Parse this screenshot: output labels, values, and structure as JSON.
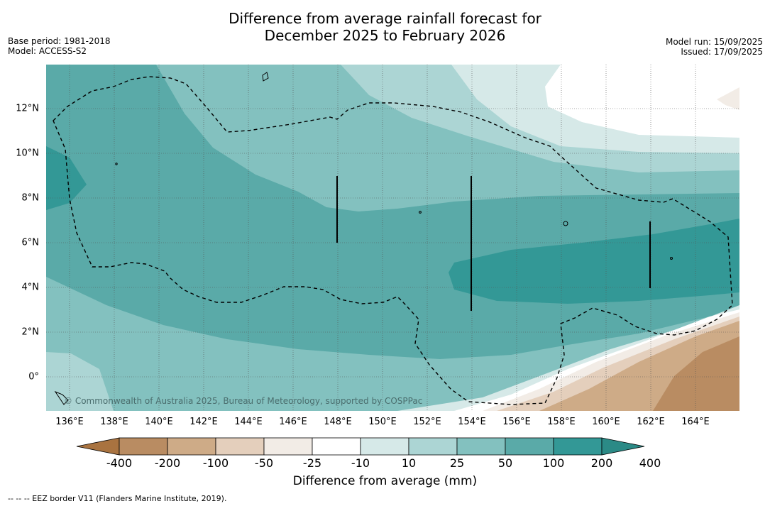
{
  "title_lines": [
    "Difference from average rainfall forecast for",
    "December 2025 to February 2026"
  ],
  "meta_left": [
    "Base period: 1981-2018",
    "Model: ACCESS-S2"
  ],
  "meta_right": [
    "Model run: 15/09/2025",
    "Issued: 17/09/2025"
  ],
  "lon_ticks": [
    "136°E",
    "138°E",
    "140°E",
    "142°E",
    "144°E",
    "146°E",
    "148°E",
    "150°E",
    "152°E",
    "154°E",
    "156°E",
    "158°E",
    "160°E",
    "162°E",
    "164°E"
  ],
  "lat_ticks": [
    "12°N",
    "10°N",
    "8°N",
    "6°N",
    "4°N",
    "2°N",
    "0°"
  ],
  "copyright": "© Commonwealth of Australia 2025, Bureau of Meteorology, supported by COSPPac",
  "colorbar": {
    "title": "Difference from average (mm)",
    "labels": [
      "-400",
      "-200",
      "-100",
      "-50",
      "-25",
      "-10",
      "10",
      "25",
      "50",
      "100",
      "200",
      "400"
    ],
    "colors": [
      "#a97340",
      "#b98c62",
      "#ceab87",
      "#e4cfbc",
      "#f2ece6",
      "#ffffff",
      "#d6e9e8",
      "#acd5d4",
      "#83c1bf",
      "#5aaaa8",
      "#339896",
      "#2b8a86"
    ]
  },
  "palette": {
    "pos_400": "#2b8a86",
    "pos_200": "#339896",
    "pos_100": "#5aaaa8",
    "pos_50": "#83c1bf",
    "pos_25": "#acd5d4",
    "pos_10": "#d6e9e8",
    "neutral": "#ffffff",
    "neg_10": "#f2ece6",
    "neg_25": "#e4cfbc",
    "neg_50": "#ceab87",
    "neg_100": "#b98c62",
    "neg_200": "#a97340"
  },
  "footnote": "-- -- -- EEZ border V11 (Flanders Marine Institute, 2019)."
}
